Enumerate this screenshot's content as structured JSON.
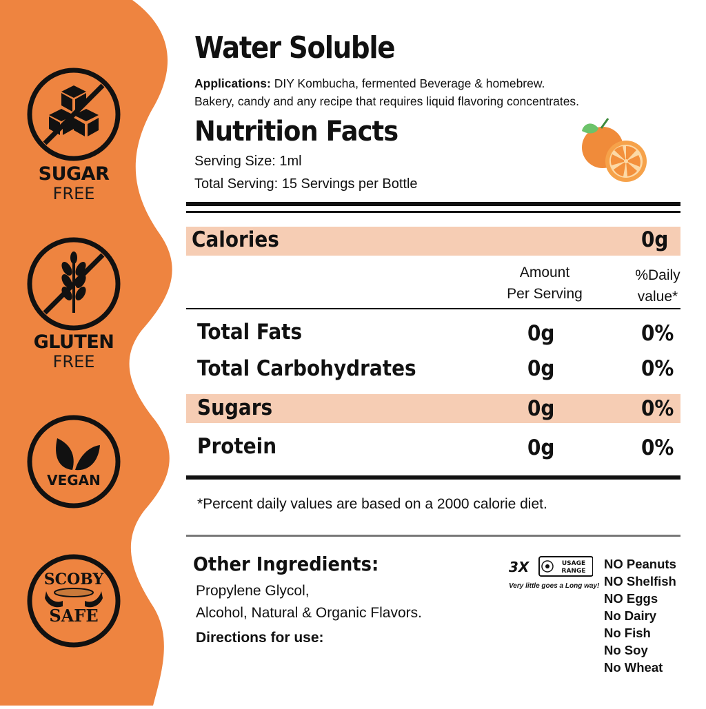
{
  "colors": {
    "accent": "#ee8440",
    "highlight": "#f6cdb4",
    "ink": "#111111"
  },
  "badges": [
    {
      "icon": "sugar-cubes-icon",
      "line1": "SUGAR",
      "line2": "FREE"
    },
    {
      "icon": "wheat-icon",
      "line1": "GLUTEN",
      "line2": "FREE"
    },
    {
      "icon": "leaves-icon",
      "line1": "VEGAN"
    },
    {
      "icon": "scoby-hands-icon",
      "line1": "SCOBY",
      "line2": "SAFE"
    }
  ],
  "header": {
    "title": "Water Soluble",
    "applications_label": "Applications:",
    "applications_line1": "DIY Kombucha, fermented Beverage & homebrew.",
    "applications_line2": "Bakery, candy and any recipe that requires liquid flavoring concentrates."
  },
  "nutrition": {
    "title": "Nutrition Facts",
    "serving_size": "Serving Size: 1ml",
    "total_serving": "Total Serving: 15 Servings per Bottle",
    "calories_label": "Calories",
    "calories_value": "0g",
    "col_amount_line1": "Amount",
    "col_amount_line2": "Per Serving",
    "col_daily_line1": "%Daily",
    "col_daily_line2": "value*",
    "rows": [
      {
        "label": "Total Fats",
        "amount": "0g",
        "daily": "0%"
      },
      {
        "label": "Total Carbohydrates",
        "amount": "0g",
        "daily": "0%"
      },
      {
        "label": "Sugars",
        "amount": "0g",
        "daily": "0%"
      },
      {
        "label": "Protein",
        "amount": "0g",
        "daily": "0%"
      }
    ],
    "footnote": "*Percent daily values are based on a 2000 calorie diet."
  },
  "ingredients": {
    "title": "Other Ingredients:",
    "line1": "Propylene Glycol,",
    "line2": "Alcohol, Natural & Organic Flavors.",
    "directions": "Directions for use:"
  },
  "usage": {
    "multiplier": "3X",
    "badge_line1": "USAGE",
    "badge_line2": "RANGE",
    "tagline": "Very little goes a Long way!"
  },
  "allergens": [
    "NO Peanuts",
    "NO Shelfish",
    "NO Eggs",
    "No Dairy",
    "No Fish",
    "No Soy",
    "No Wheat"
  ]
}
